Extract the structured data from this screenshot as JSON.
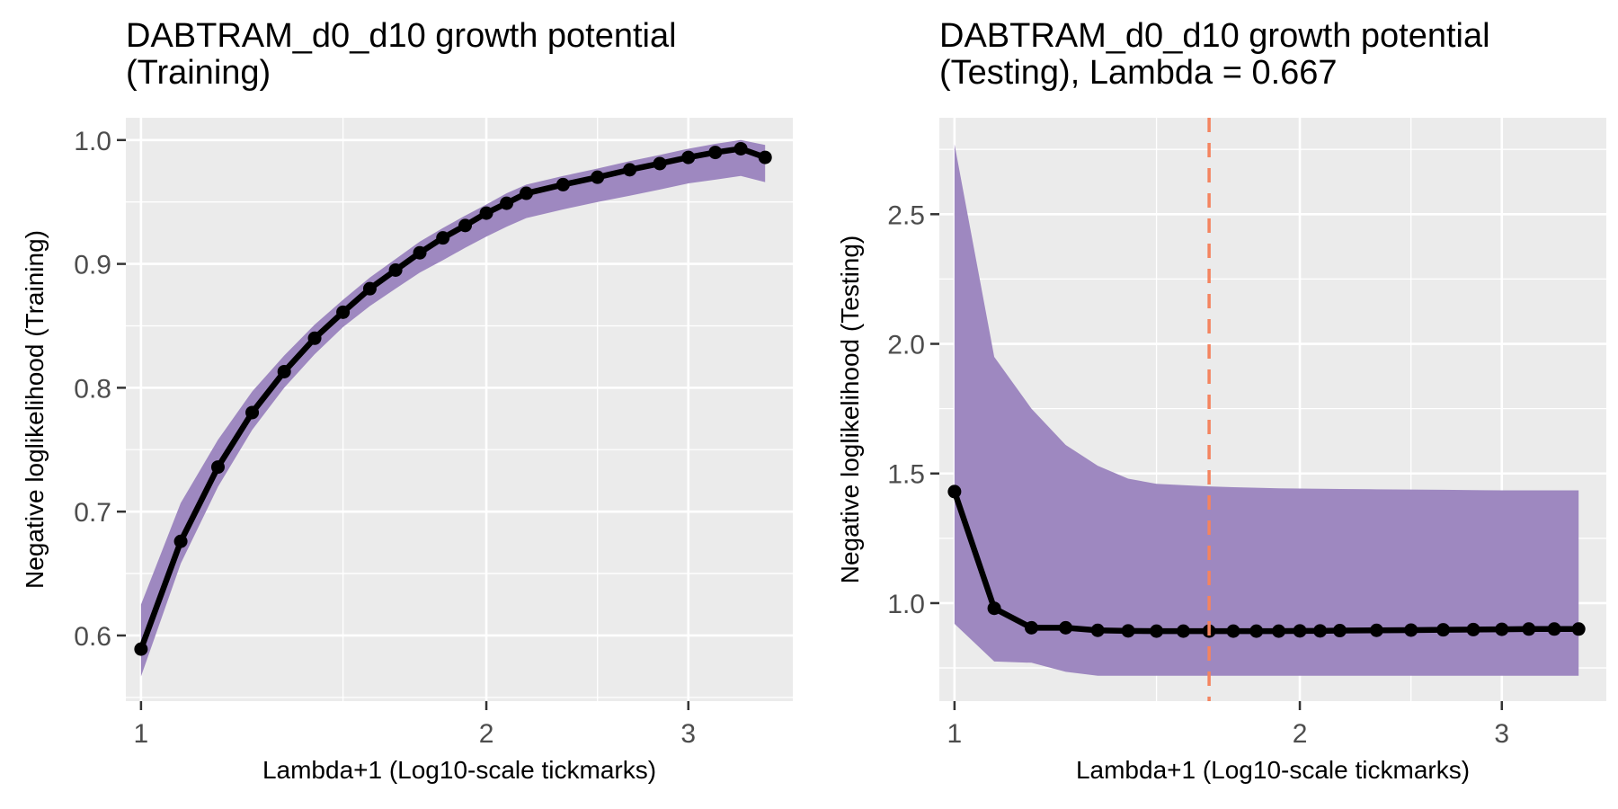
{
  "chart_data": [
    {
      "type": "line",
      "title_lines": [
        "DABTRAM_d0_d10 growth potential",
        "(Training)"
      ],
      "xlabel": "Lambda+1 (Log10-scale tickmarks)",
      "ylabel": "Negative loglikelihood (Training)",
      "x_scale": "log10",
      "xlim": [
        0.97,
        3.7
      ],
      "ylim": [
        0.547,
        1.018
      ],
      "x_ticks": [
        1,
        2,
        3
      ],
      "x_tick_labels": [
        "1",
        "2",
        "3"
      ],
      "x_minor_gridlines": [
        1.5,
        2.5
      ],
      "y_ticks": [
        0.6,
        0.7,
        0.8,
        0.9,
        1.0
      ],
      "y_tick_labels": [
        "0.6",
        "0.7",
        "0.8",
        "0.9",
        "1.0"
      ],
      "grid": true,
      "series": [
        {
          "x": [
            1.0,
            1.083,
            1.167,
            1.25,
            1.333,
            1.417,
            1.5,
            1.583,
            1.667,
            1.75,
            1.833,
            1.917,
            2.0,
            2.083,
            2.167,
            2.333,
            2.5,
            2.667,
            2.833,
            3.0,
            3.167,
            3.333,
            3.5
          ],
          "values": [
            0.589,
            0.676,
            0.736,
            0.78,
            0.813,
            0.84,
            0.861,
            0.88,
            0.895,
            0.909,
            0.921,
            0.931,
            0.941,
            0.949,
            0.957,
            0.964,
            0.97,
            0.976,
            0.981,
            0.986,
            0.99,
            0.993,
            0.986
          ],
          "band_upper": [
            0.625,
            0.707,
            0.758,
            0.797,
            0.826,
            0.851,
            0.871,
            0.889,
            0.904,
            0.918,
            0.929,
            0.939,
            0.948,
            0.957,
            0.964,
            0.971,
            0.977,
            0.983,
            0.988,
            0.993,
            0.997,
            1.0,
            0.996
          ],
          "band_lower": [
            0.567,
            0.658,
            0.72,
            0.766,
            0.8,
            0.827,
            0.849,
            0.866,
            0.88,
            0.893,
            0.903,
            0.913,
            0.922,
            0.93,
            0.937,
            0.944,
            0.95,
            0.955,
            0.96,
            0.965,
            0.968,
            0.971,
            0.966
          ]
        }
      ]
    },
    {
      "type": "line",
      "title_lines": [
        "DABTRAM_d0_d10 growth potential",
        "(Testing), Lambda = 0.667"
      ],
      "xlabel": "Lambda+1 (Log10-scale tickmarks)",
      "ylabel": "Negative loglikelihood (Testing)",
      "x_scale": "log10",
      "xlim": [
        0.97,
        3.7
      ],
      "ylim": [
        0.622,
        2.872
      ],
      "x_ticks": [
        1,
        2,
        3
      ],
      "x_tick_labels": [
        "1",
        "2",
        "3"
      ],
      "x_minor_gridlines": [
        1.5,
        2.5
      ],
      "y_ticks": [
        1.0,
        1.5,
        2.0,
        2.5
      ],
      "y_tick_labels": [
        "1.0",
        "1.5",
        "2.0",
        "2.5"
      ],
      "grid": true,
      "vline": {
        "x": 1.667,
        "color": "#f4845f",
        "style": "dashed"
      },
      "series": [
        {
          "x": [
            1.0,
            1.083,
            1.167,
            1.25,
            1.333,
            1.417,
            1.5,
            1.583,
            1.667,
            1.75,
            1.833,
            1.917,
            2.0,
            2.083,
            2.167,
            2.333,
            2.5,
            2.667,
            2.833,
            3.0,
            3.167,
            3.333,
            3.5
          ],
          "values": [
            1.43,
            0.98,
            0.905,
            0.905,
            0.895,
            0.893,
            0.892,
            0.892,
            0.892,
            0.892,
            0.892,
            0.892,
            0.893,
            0.893,
            0.894,
            0.895,
            0.896,
            0.897,
            0.898,
            0.899,
            0.9,
            0.9,
            0.9
          ],
          "band_upper": [
            2.77,
            1.95,
            1.75,
            1.61,
            1.53,
            1.48,
            1.46,
            1.455,
            1.45,
            1.447,
            1.445,
            1.443,
            1.442,
            1.441,
            1.44,
            1.439,
            1.438,
            1.437,
            1.436,
            1.435,
            1.435,
            1.435,
            1.435
          ],
          "band_lower": [
            0.92,
            0.775,
            0.77,
            0.735,
            0.72,
            0.72,
            0.72,
            0.72,
            0.72,
            0.72,
            0.72,
            0.72,
            0.72,
            0.72,
            0.72,
            0.72,
            0.72,
            0.72,
            0.72,
            0.72,
            0.72,
            0.72,
            0.72
          ]
        }
      ]
    }
  ],
  "colors": {
    "panel_background": "#ebebeb",
    "grid": "#ffffff",
    "band": "#9e88c0",
    "line": "#000000",
    "vline": "#f4845f"
  }
}
